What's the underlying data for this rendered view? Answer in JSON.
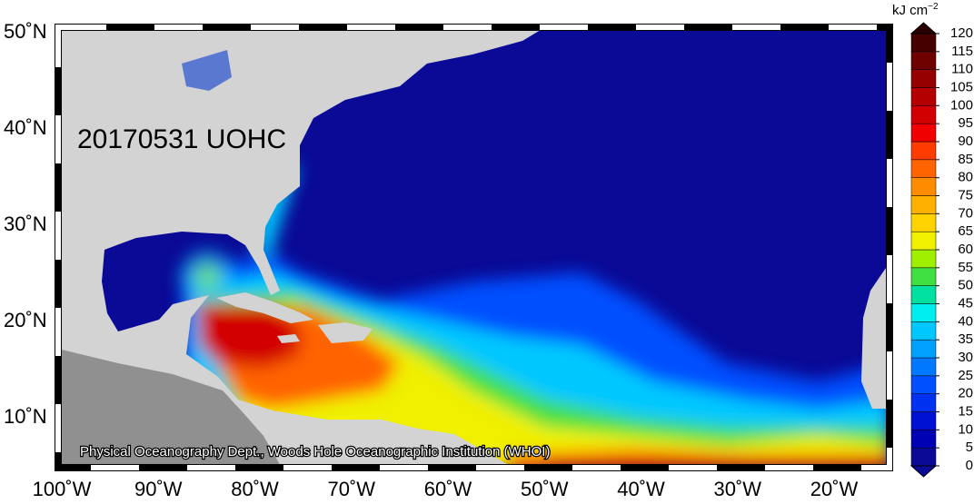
{
  "map": {
    "title": "20170531 UOHC",
    "credit": "Physical Oceanography Dept., Woods Hole Oceanographic Institution (WHOI)",
    "lat_labels": [
      "50˚N",
      "40˚N",
      "30˚N",
      "20˚N",
      "10˚N"
    ],
    "lon_labels": [
      "100˚W",
      "90˚W",
      "80˚W",
      "70˚W",
      "60˚W",
      "50˚W",
      "40˚W",
      "30˚W",
      "20˚W"
    ],
    "colorbar": {
      "unit": "kJ cm",
      "unit_exponent": "−2",
      "ticks": [
        0,
        5,
        10,
        15,
        20,
        25,
        30,
        35,
        40,
        45,
        50,
        55,
        60,
        65,
        70,
        75,
        80,
        85,
        90,
        95,
        100,
        105,
        110,
        115,
        120
      ],
      "colors": [
        "#0a0a96",
        "#0000b4",
        "#0010d2",
        "#0030f0",
        "#0050ff",
        "#0078ff",
        "#00a0ff",
        "#00c8ff",
        "#00eef0",
        "#00e0a0",
        "#40e040",
        "#a0ee00",
        "#f0f000",
        "#ffd200",
        "#ffb000",
        "#ff8c00",
        "#ff6400",
        "#ff3c00",
        "#f00000",
        "#d20000",
        "#b40000",
        "#960000",
        "#6e0000",
        "#460000"
      ]
    }
  }
}
